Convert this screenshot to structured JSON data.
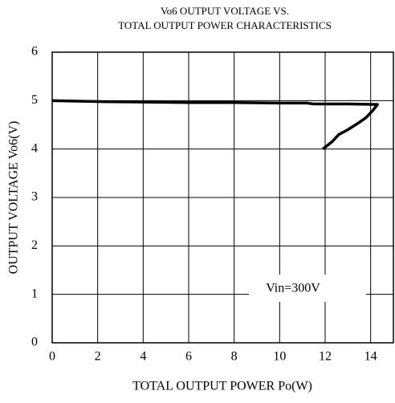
{
  "chart_data": {
    "type": "line",
    "title": [
      "Vo6 OUTPUT VOLTAGE VS.",
      "TOTAL OUTPUT POWER CHARACTERISTICS"
    ],
    "x_label": "TOTAL OUTPUT POWER Po(W)",
    "y_label": "OUTPUT VOLTAGE Vo6(V)",
    "annotation": "Vin=300V",
    "x": [
      0,
      2,
      4,
      6,
      8,
      10,
      11.2,
      11.5,
      13,
      14.3,
      14.1,
      13.8,
      13.5,
      13,
      12.6,
      12.3,
      11.9
    ],
    "series": [
      {
        "name": "Vo6",
        "color": "#000000",
        "values": [
          5.0,
          4.98,
          4.97,
          4.96,
          4.96,
          4.95,
          4.95,
          4.93,
          4.93,
          4.92,
          4.8,
          4.65,
          4.55,
          4.4,
          4.3,
          4.15,
          4.0
        ]
      }
    ],
    "xlim": [
      0,
      15
    ],
    "xticks": [
      0,
      2,
      4,
      6,
      8,
      10,
      12,
      14
    ],
    "ylim": [
      0,
      6
    ],
    "yticks": [
      0,
      1,
      2,
      3,
      4,
      5,
      6
    ],
    "grid": true
  }
}
